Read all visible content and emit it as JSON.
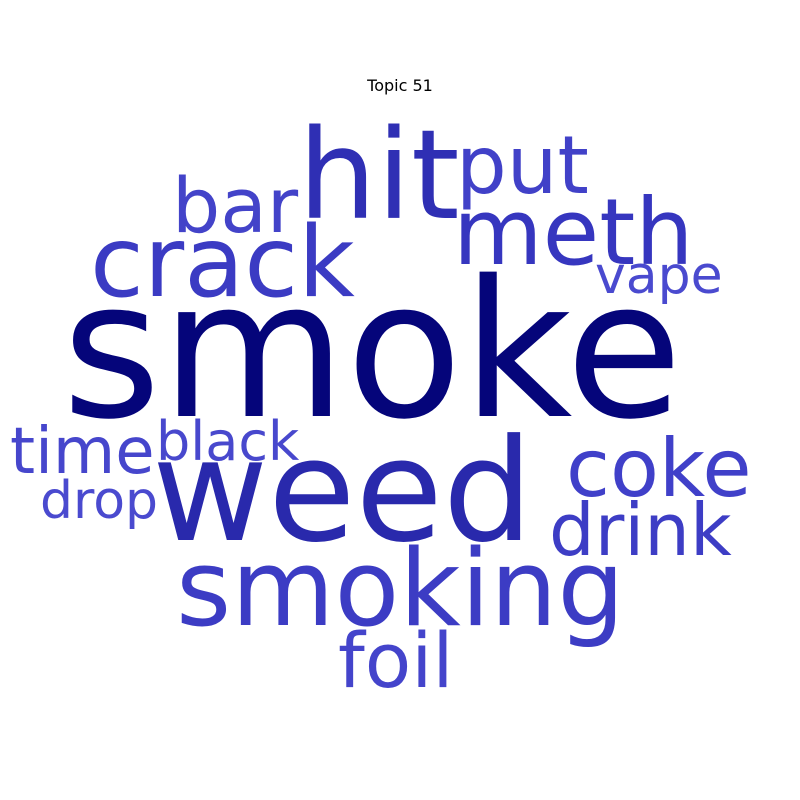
{
  "chart_data": {
    "type": "wordcloud",
    "title": "Topic 51",
    "words": [
      {
        "text": "smoke",
        "weight": 1.0,
        "color": "#05057a"
      },
      {
        "text": "weed",
        "weight": 0.72,
        "color": "#2929ac"
      },
      {
        "text": "hit",
        "weight": 0.58,
        "color": "#2f2fb4"
      },
      {
        "text": "smoking",
        "weight": 0.55,
        "color": "#3c3cc4"
      },
      {
        "text": "crack",
        "weight": 0.5,
        "color": "#3b3bc3"
      },
      {
        "text": "meth",
        "weight": 0.48,
        "color": "#3636bf"
      },
      {
        "text": "put",
        "weight": 0.42,
        "color": "#4141c8"
      },
      {
        "text": "coke",
        "weight": 0.4,
        "color": "#4040c9"
      },
      {
        "text": "bar",
        "weight": 0.38,
        "color": "#4343c9"
      },
      {
        "text": "drink",
        "weight": 0.38,
        "color": "#3d3dc5"
      },
      {
        "text": "foil",
        "weight": 0.38,
        "color": "#4444cb"
      },
      {
        "text": "time",
        "weight": 0.33,
        "color": "#4646cc"
      },
      {
        "text": "black",
        "weight": 0.28,
        "color": "#4848cd"
      },
      {
        "text": "vape",
        "weight": 0.26,
        "color": "#4a4acf"
      },
      {
        "text": "drop",
        "weight": 0.26,
        "color": "#4a4acf"
      }
    ]
  }
}
